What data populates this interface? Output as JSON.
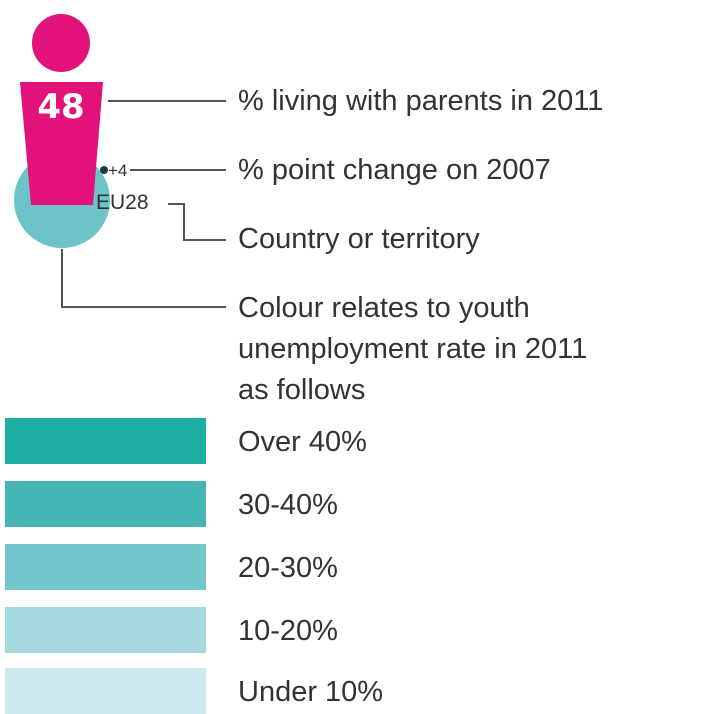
{
  "figure": {
    "value": "48",
    "change": "+4",
    "country": "EU28"
  },
  "labels": {
    "living_with_parents": "% living with parents in 2011",
    "point_change": "% point change on 2007",
    "country": "Country or territory",
    "colour_line1": "Colour relates to youth",
    "colour_line2": "unemployment rate in 2011",
    "colour_line3": "as follows"
  },
  "scale": [
    {
      "label": "Over 40%",
      "color": "#1eaea4"
    },
    {
      "label": "30-40%",
      "color": "#44b6b4"
    },
    {
      "label": "20-30%",
      "color": "#73c6cb"
    },
    {
      "label": "10-20%",
      "color": "#a6d9df"
    },
    {
      "label": "Under 10%",
      "color": "#cde8ee"
    }
  ],
  "colors": {
    "figure": "#e2127a",
    "circle": "#6dc3c6",
    "line": "#555555",
    "text": "#333333"
  }
}
